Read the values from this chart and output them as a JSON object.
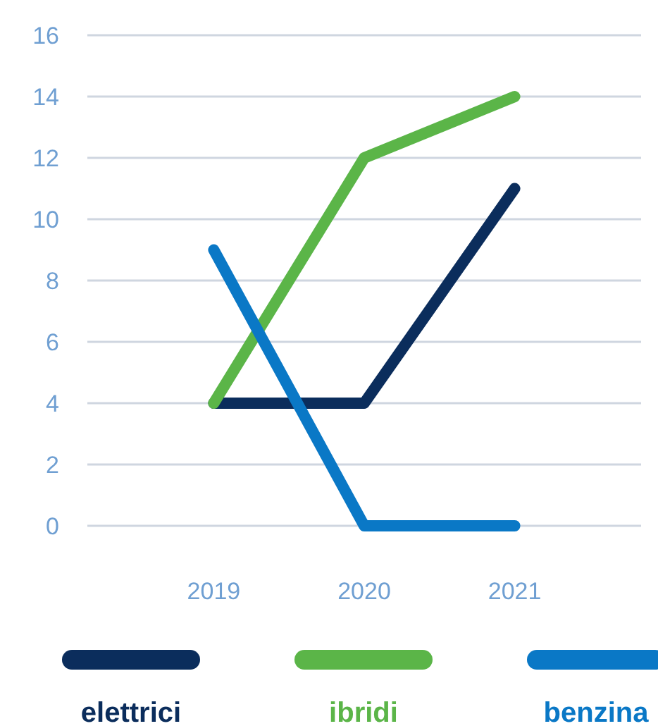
{
  "chart_data": {
    "type": "line",
    "categories": [
      "2019",
      "2020",
      "2021"
    ],
    "series": [
      {
        "name": "elettrici",
        "color": "#0b2d5c",
        "values": [
          4,
          4,
          11
        ]
      },
      {
        "name": "ibridi",
        "color": "#5bb548",
        "values": [
          4,
          12,
          14
        ]
      },
      {
        "name": "benzina",
        "color": "#0a78c6",
        "values": [
          9,
          0,
          0
        ]
      }
    ],
    "ylim": [
      0,
      16
    ],
    "yticks": [
      0,
      2,
      4,
      6,
      8,
      10,
      12,
      14,
      16
    ],
    "grid": "y",
    "legend": "bottom",
    "marker": "none",
    "line_style": "solid"
  }
}
